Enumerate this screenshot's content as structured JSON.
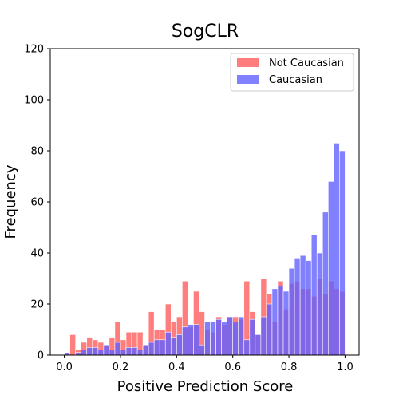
{
  "chart_data": {
    "type": "bar",
    "title": "SogCLR",
    "xlabel": "Positive Prediction Score",
    "ylabel": "Frequency",
    "xlim": [
      -0.05,
      1.05
    ],
    "ylim": [
      0,
      120
    ],
    "xticks": [
      0.0,
      0.2,
      0.4,
      0.6,
      0.8,
      1.0
    ],
    "xtick_labels": [
      "0.0",
      "0.2",
      "0.4",
      "0.6",
      "0.8",
      "1.0"
    ],
    "yticks": [
      0,
      20,
      40,
      60,
      80,
      100,
      120
    ],
    "ytick_labels": [
      "0",
      "20",
      "40",
      "60",
      "80",
      "100",
      "120"
    ],
    "legend_position": "top-right",
    "bin_start": 0.0,
    "bin_width": 0.02,
    "series": [
      {
        "name": "Not Caucasian",
        "color": "#ff5c5c",
        "values": [
          1,
          8,
          2,
          5,
          7,
          6,
          5,
          4,
          7,
          13,
          6,
          9,
          9,
          9,
          4,
          17,
          10,
          10,
          20,
          13,
          15,
          29,
          11,
          25,
          17,
          10,
          9,
          15,
          12,
          15,
          15,
          14,
          29,
          17,
          8,
          30,
          24,
          13,
          29,
          18,
          28,
          29,
          26,
          26,
          23,
          30,
          24,
          29,
          26,
          25
        ]
      },
      {
        "name": "Caucasian",
        "color": "#6262ff",
        "values": [
          1,
          0,
          1,
          2,
          3,
          3,
          2,
          4,
          2,
          5,
          2,
          3,
          3,
          2,
          4,
          5,
          6,
          6,
          9,
          7,
          8,
          11,
          12,
          12,
          4,
          13,
          13,
          14,
          13,
          15,
          13,
          15,
          6,
          14,
          8,
          15,
          20,
          26,
          27,
          25,
          34,
          38,
          39,
          37,
          47,
          40,
          56,
          68,
          83,
          80
        ]
      }
    ]
  }
}
